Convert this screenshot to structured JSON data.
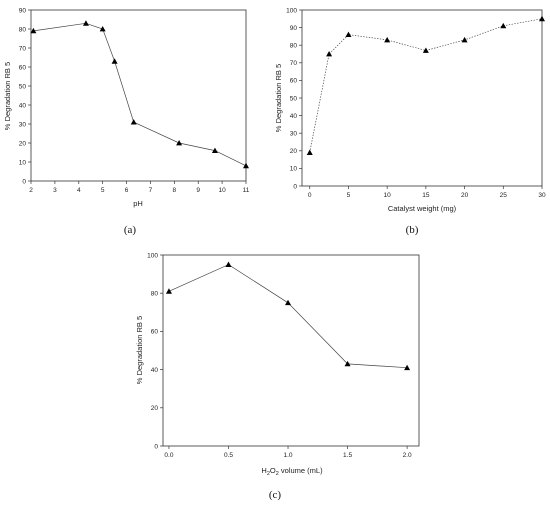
{
  "chart_data": [
    {
      "type": "line",
      "caption": "(a)",
      "xlabel": "pH",
      "ylabel": "% Degradation RB 5",
      "xlim": [
        2,
        11
      ],
      "ylim": [
        0,
        90
      ],
      "xticks": [
        2,
        3,
        4,
        5,
        6,
        7,
        8,
        9,
        10,
        11
      ],
      "yticks": [
        0,
        10,
        20,
        30,
        40,
        50,
        60,
        70,
        80,
        90
      ],
      "line_style": "solid",
      "marker": "triangle",
      "x": [
        2.1,
        4.3,
        5.0,
        5.5,
        6.3,
        8.2,
        9.7,
        11.0
      ],
      "y": [
        79,
        83,
        80,
        63,
        31,
        20,
        16,
        8
      ]
    },
    {
      "type": "line",
      "caption": "(b)",
      "xlabel": "Catalyst weight (mg)",
      "ylabel": "% Degradation RB 5",
      "xlim": [
        -1,
        30
      ],
      "ylim": [
        0,
        100
      ],
      "xticks": [
        0,
        5,
        10,
        15,
        20,
        25,
        30
      ],
      "yticks": [
        0,
        10,
        20,
        30,
        40,
        50,
        60,
        70,
        80,
        90,
        100
      ],
      "line_style": "dotted",
      "marker": "triangle",
      "x": [
        0,
        2.5,
        5,
        10,
        15,
        20,
        25,
        30
      ],
      "y": [
        19,
        75,
        86,
        83,
        77,
        83,
        91,
        95
      ]
    },
    {
      "type": "line",
      "caption": "(c)",
      "xlabel": "H2O2 volume (mL)",
      "xlabel_parts": [
        "H",
        "2",
        "O",
        "2",
        " volume (mL)"
      ],
      "ylabel": "% Degradation RB 5",
      "xlim": [
        -0.05,
        2.1
      ],
      "ylim": [
        0,
        100
      ],
      "xticks": [
        "0.0",
        "0.5",
        "1.0",
        "1.5",
        "2.0"
      ],
      "yticks": [
        0,
        20,
        40,
        60,
        80,
        100
      ],
      "line_style": "solid",
      "marker": "triangle",
      "x": [
        0.0,
        0.5,
        1.0,
        1.5,
        2.0
      ],
      "y": [
        81,
        95,
        75,
        43,
        41
      ]
    }
  ]
}
